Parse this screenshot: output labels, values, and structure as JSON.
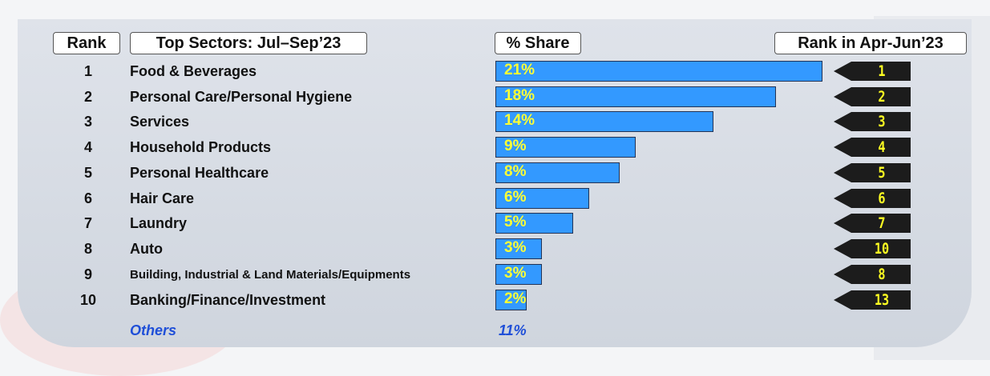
{
  "headers": {
    "rank": "Rank",
    "sectors": "Top Sectors: Jul–Sep’23",
    "share": "% Share",
    "prev_rank": "Rank in Apr-Jun’23"
  },
  "colors": {
    "bar_fill": "#3399ff",
    "bar_label": "#ffff33",
    "prev_rank_tag": "#1c1c1c",
    "prev_rank_text": "#ffff22",
    "others_text": "#1f4fd8"
  },
  "chart_data": {
    "type": "bar",
    "orientation": "horizontal",
    "categories": [
      "Food & Beverages",
      "Personal Care/Personal Hygiene",
      "Services",
      "Household Products",
      "Personal Healthcare",
      "Hair Care",
      "Laundry",
      "Auto",
      "Building, Industrial & Land Materials/Equipments",
      "Banking/Finance/Investment"
    ],
    "ranks": [
      "1",
      "2",
      "3",
      "4",
      "5",
      "6",
      "7",
      "8",
      "9",
      "10"
    ],
    "values": [
      21,
      18,
      14,
      9,
      8,
      6,
      5,
      3,
      3,
      2
    ],
    "value_labels": [
      "21%",
      "18%",
      "14%",
      "9%",
      "8%",
      "6%",
      "5%",
      "3%",
      "3%",
      "2%"
    ],
    "prev_ranks": [
      "1",
      "2",
      "3",
      "4",
      "5",
      "6",
      "7",
      "10",
      "8",
      "13"
    ],
    "xlim": [
      0,
      21
    ],
    "others": {
      "label": "Others",
      "value_label": "11%",
      "value": 11
    }
  }
}
